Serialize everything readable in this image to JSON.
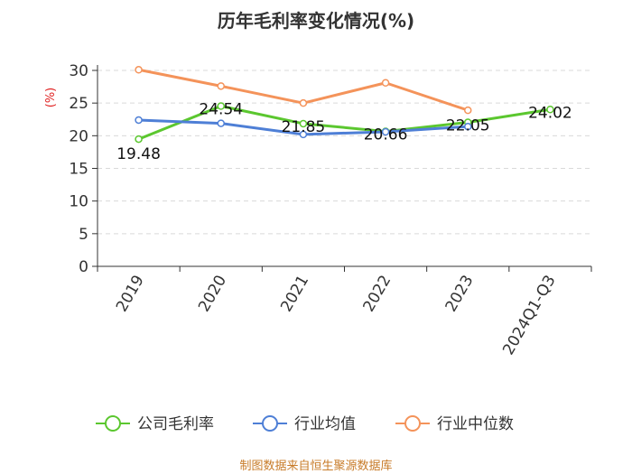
{
  "chart_data": {
    "type": "line",
    "title": "历年毛利率变化情况(%)",
    "ylabel": "(%)",
    "xlabel": "",
    "categories": [
      "2019",
      "2020",
      "2021",
      "2022",
      "2023",
      "2024Q1-Q3"
    ],
    "ylim": [
      0,
      30
    ],
    "yticks": [
      0,
      5,
      10,
      15,
      20,
      25,
      30
    ],
    "grid": true,
    "legend_position": "bottom",
    "series": [
      {
        "name": "公司毛利率",
        "color": "#5bc72f",
        "values": [
          19.48,
          24.54,
          21.85,
          20.66,
          22.05,
          24.02
        ],
        "show_labels": true
      },
      {
        "name": "行业均值",
        "color": "#4e7fd6",
        "values": [
          22.4,
          21.9,
          20.2,
          20.6,
          21.4,
          null
        ],
        "show_labels": false
      },
      {
        "name": "行业中位数",
        "color": "#f4935a",
        "values": [
          30.1,
          27.6,
          25.0,
          28.1,
          23.9,
          null
        ],
        "show_labels": false
      }
    ]
  },
  "footer": {
    "source": "制图数据来自恒生聚源数据库"
  }
}
